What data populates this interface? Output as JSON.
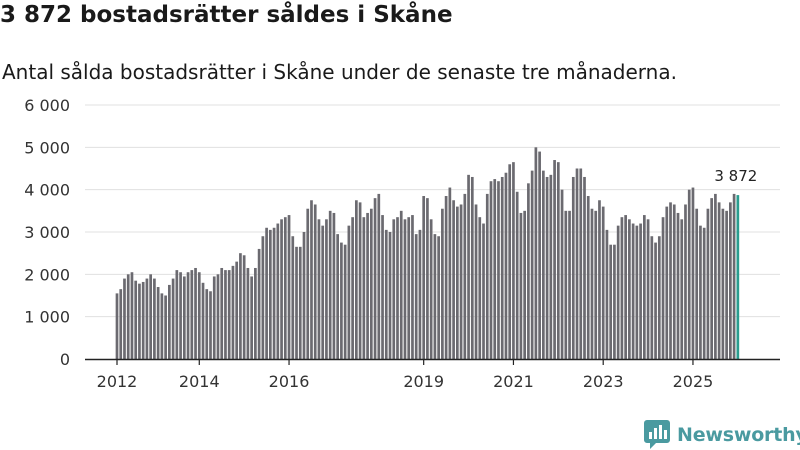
{
  "title": "3 872 bostadsrätter såldes i Skåne",
  "subtitle": "Antal sålda bostadsrätter i Skåne under de senaste tre månaderna.",
  "brand": "Newsworthy",
  "colors": {
    "bar": "#6b6a70",
    "highlight": "#2a9d8f",
    "grid": "#e0e0e0",
    "axis": "#222222",
    "brand": "#4a9aa0"
  },
  "chart_data": {
    "type": "bar",
    "title": "3 872 bostadsrätter såldes i Skåne",
    "subtitle": "Antal sålda bostadsrätter i Skåne under de senaste tre månaderna.",
    "xlabel": "",
    "ylabel": "",
    "ylim": [
      0,
      6000
    ],
    "yticks": [
      0,
      1000,
      2000,
      3000,
      4000,
      5000,
      6000
    ],
    "ytick_labels": [
      "0",
      "1 000",
      "2 000",
      "3 000",
      "4 000",
      "5 000",
      "6 000"
    ],
    "start": "2012-02",
    "frequency": "monthly",
    "xtick_labels": [
      {
        "label": "2012",
        "index": 0
      },
      {
        "label": "2014",
        "index": 22
      },
      {
        "label": "2016",
        "index": 46
      },
      {
        "label": "2019",
        "index": 82
      },
      {
        "label": "2021",
        "index": 106
      },
      {
        "label": "2023",
        "index": 130
      },
      {
        "label": "2025",
        "index": 154
      }
    ],
    "grid": true,
    "highlight_index": 166,
    "highlight_label": "3 872",
    "values": [
      1550,
      1650,
      1900,
      2000,
      2050,
      1850,
      1780,
      1820,
      1900,
      2000,
      1900,
      1700,
      1550,
      1500,
      1750,
      1900,
      2100,
      2050,
      1950,
      2050,
      2100,
      2150,
      2050,
      1800,
      1650,
      1600,
      1950,
      2000,
      2150,
      2100,
      2100,
      2200,
      2300,
      2500,
      2450,
      2150,
      1950,
      2150,
      2600,
      2900,
      3100,
      3050,
      3100,
      3200,
      3300,
      3350,
      3400,
      2900,
      2650,
      2650,
      3000,
      3550,
      3750,
      3650,
      3300,
      3150,
      3300,
      3500,
      3450,
      2950,
      2750,
      2700,
      3150,
      3350,
      3750,
      3700,
      3350,
      3450,
      3550,
      3800,
      3900,
      3400,
      3050,
      3000,
      3300,
      3350,
      3500,
      3300,
      3350,
      3400,
      2950,
      3050,
      3850,
      3800,
      3300,
      2950,
      2900,
      3550,
      3850,
      4050,
      3750,
      3600,
      3650,
      3900,
      4350,
      4300,
      3650,
      3350,
      3200,
      3900,
      4200,
      4250,
      4200,
      4300,
      4400,
      4600,
      4650,
      3950,
      3450,
      3500,
      4150,
      4450,
      5000,
      4900,
      4450,
      4300,
      4350,
      4700,
      4650,
      4000,
      3500,
      3500,
      4300,
      4500,
      4500,
      4300,
      3850,
      3550,
      3500,
      3750,
      3600,
      3050,
      2700,
      2700,
      3150,
      3350,
      3400,
      3300,
      3200,
      3150,
      3200,
      3400,
      3300,
      2900,
      2750,
      2900,
      3350,
      3600,
      3700,
      3650,
      3450,
      3300,
      3650,
      4000,
      4050,
      3550,
      3150,
      3100,
      3550,
      3800,
      3900,
      3700,
      3550,
      3500,
      3700,
      3900,
      3872
    ]
  }
}
